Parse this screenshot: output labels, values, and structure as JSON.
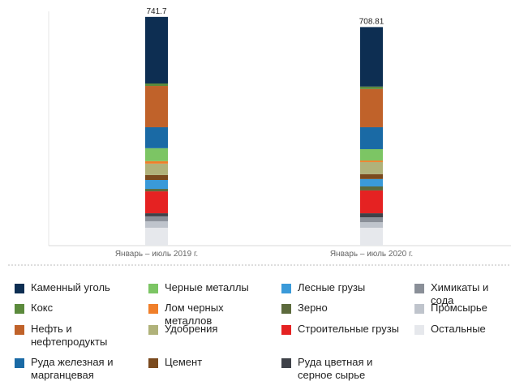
{
  "chart_data": {
    "type": "stacked-bar",
    "categories": [
      "Январь – июль 2019 г.",
      "Январь – июль 2020 г."
    ],
    "totals": [
      741.7,
      708.81
    ],
    "ylim": [
      0,
      760
    ],
    "series": [
      {
        "name": "Каменный уголь",
        "color": "#0d2e52",
        "values": [
          216,
          193
        ]
      },
      {
        "name": "Кокс",
        "color": "#5b8a3c",
        "values": [
          8,
          8
        ]
      },
      {
        "name": "Нефть и нефтепродукты",
        "color": "#c0622a",
        "values": [
          134,
          124
        ]
      },
      {
        "name": "Руда железная и марганцевая",
        "color": "#1a6aa5",
        "values": [
          68,
          71
        ]
      },
      {
        "name": "Черные металлы",
        "color": "#7cc564",
        "values": [
          42,
          37
        ]
      },
      {
        "name": "Лом черных металлов",
        "color": "#f07f2a",
        "values": [
          8,
          5
        ]
      },
      {
        "name": "Удобрения",
        "color": "#b0b27a",
        "values": [
          37,
          39
        ]
      },
      {
        "name": "Цемент",
        "color": "#7a4a1e",
        "values": [
          16,
          16
        ]
      },
      {
        "name": "Лесные грузы",
        "color": "#3a9ad9",
        "values": [
          29,
          24
        ]
      },
      {
        "name": "Зерно",
        "color": "#5c6a3c",
        "values": [
          8,
          13
        ]
      },
      {
        "name": "Строительные грузы",
        "color": "#e52222",
        "values": [
          71,
          74
        ]
      },
      {
        "name": "Руда цветная и серное сырье",
        "color": "#3e4148",
        "values": [
          10,
          13
        ]
      },
      {
        "name": "Химикаты и сода",
        "color": "#8a8f98",
        "values": [
          16,
          16
        ]
      },
      {
        "name": "Промсырье",
        "color": "#bfc4cc",
        "values": [
          21,
          18
        ]
      },
      {
        "name": "Остальные",
        "color": "#e6e8ec",
        "values": [
          58,
          58
        ]
      }
    ]
  }
}
